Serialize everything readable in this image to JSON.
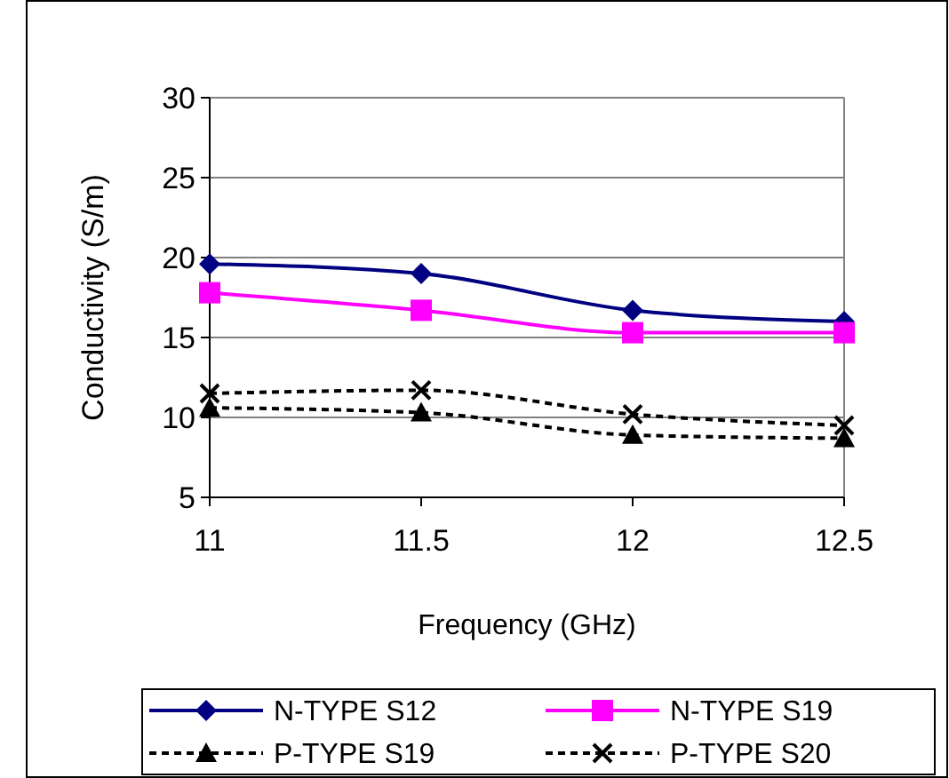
{
  "chart_data": {
    "type": "line",
    "xlabel": "Frequency (GHz)",
    "ylabel": "Conductivity (S/m)",
    "x": [
      11,
      11.5,
      12,
      12.5
    ],
    "xlim": [
      11,
      12.5
    ],
    "xticks": [
      11,
      11.5,
      12,
      12.5
    ],
    "ylim": [
      5,
      30
    ],
    "yticks": [
      5,
      10,
      15,
      20,
      25,
      30
    ],
    "grid": "y",
    "legend": "bottom",
    "series": [
      {
        "name": "N-TYPE S12",
        "color": "#000080",
        "marker": "diamond",
        "line_style": "solid",
        "values": [
          19.6,
          19,
          16.7,
          16
        ]
      },
      {
        "name": "N-TYPE S19",
        "color": "#ff00ff",
        "marker": "square",
        "line_style": "solid",
        "values": [
          17.8,
          16.7,
          15.3,
          15.3
        ]
      },
      {
        "name": "P-TYPE S19",
        "color": "#000000",
        "marker": "triangle",
        "line_style": "dashed",
        "values": [
          10.6,
          10.3,
          8.9,
          8.7
        ]
      },
      {
        "name": "P-TYPE S20",
        "color": "#000000",
        "marker": "cross",
        "line_style": "dashed",
        "values": [
          11.5,
          11.7,
          10.2,
          9.5
        ]
      }
    ]
  }
}
